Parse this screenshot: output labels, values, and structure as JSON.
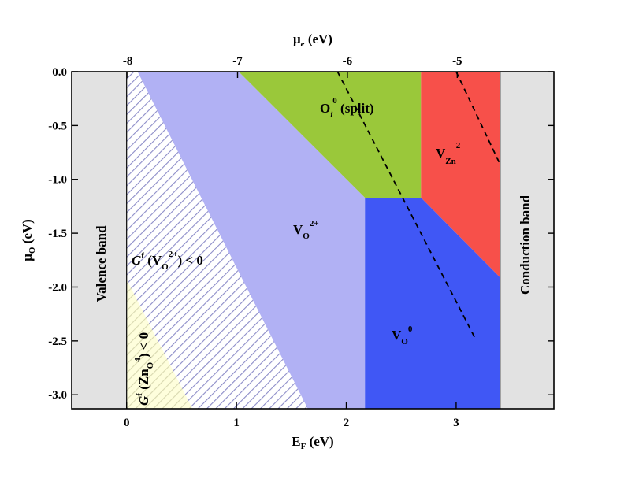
{
  "chart_data": {
    "type": "area",
    "xaxis": {
      "label_main": "E",
      "label_sub": "F",
      "label_unit": " (eV)",
      "ticks": [
        0,
        1,
        2,
        3
      ],
      "tick_labels": [
        "0",
        "1",
        "2",
        "3"
      ],
      "xlim": [
        -0.5,
        3.89
      ]
    },
    "top_axis": {
      "label_main": "μ",
      "label_sub": "e",
      "label_unit": " (eV)",
      "ticks": [
        0.01,
        1.01,
        2.01,
        3.01
      ],
      "tick_labels": [
        "-8",
        "-7",
        "-6",
        "-5"
      ]
    },
    "yaxis": {
      "label_main": "μ",
      "label_sub": "O",
      "label_unit": " (eV)",
      "ticks": [
        0.0,
        -0.5,
        -1.0,
        -1.5,
        -2.0,
        -2.5,
        -3.0
      ],
      "tick_labels": [
        "0.0",
        "-0.5",
        "-1.0",
        "-1.5",
        "-2.0",
        "-2.5",
        "-3.0"
      ],
      "ylim": [
        -3.13,
        0.0
      ]
    },
    "bands": {
      "valence": {
        "label": "Valence band",
        "x_range": [
          -0.5,
          0.0
        ],
        "color": "#e2e2e2"
      },
      "conduction": {
        "label": "Conduction band",
        "x_range": [
          3.4,
          3.89
        ],
        "color": "#e2e2e2"
      }
    },
    "regions": [
      {
        "id": "vo2plus",
        "color": "#b1b1f4",
        "label_main": "V",
        "label_sub": "O",
        "label_sup": "2+",
        "polygon": [
          [
            0.0,
            0.0
          ],
          [
            1.02,
            0.0
          ],
          [
            2.17,
            -1.17
          ],
          [
            2.17,
            -3.13
          ],
          [
            0.0,
            -3.13
          ]
        ]
      },
      {
        "id": "oi0",
        "color": "#9ac83a",
        "label_main": "O",
        "label_sub": "i",
        "label_sup": "0",
        "label_suffix": " (split)",
        "polygon": [
          [
            1.02,
            0.0
          ],
          [
            2.68,
            0.0
          ],
          [
            2.68,
            -1.17
          ],
          [
            2.17,
            -1.17
          ]
        ]
      },
      {
        "id": "vzn2minus",
        "color": "#f7504a",
        "label_main": "V",
        "label_sub": "Zn",
        "label_sup": "2-",
        "polygon": [
          [
            2.68,
            0.0
          ],
          [
            3.4,
            0.0
          ],
          [
            3.4,
            -1.91
          ],
          [
            2.68,
            -1.17
          ]
        ]
      },
      {
        "id": "vo0",
        "color": "#4057f5",
        "label_main": "V",
        "label_sub": "O",
        "label_sup": "0",
        "polygon": [
          [
            2.17,
            -1.17
          ],
          [
            2.68,
            -1.17
          ],
          [
            3.4,
            -1.91
          ],
          [
            3.4,
            -3.13
          ],
          [
            2.17,
            -3.13
          ]
        ]
      }
    ],
    "hatched_regions": [
      {
        "id": "gf_vo2plus_negative",
        "hatch_color": "#8c8cc8",
        "background": "#ffffff",
        "polygon": [
          [
            0.0,
            0.0
          ],
          [
            0.1,
            0.0
          ],
          [
            1.65,
            -3.13
          ],
          [
            0.0,
            -3.13
          ]
        ],
        "label_main": "G",
        "label_sup": "f",
        "label_open": " (V",
        "label_sub": "O",
        "label_sup2": "2+",
        "label_close": ") < 0"
      },
      {
        "id": "gf_zno4_negative",
        "hatch_color": "#d8d8b0",
        "background": "#fefedc",
        "polygon": [
          [
            0.0,
            -1.93
          ],
          [
            0.6,
            -3.13
          ],
          [
            0.0,
            -3.13
          ]
        ],
        "label_main": "G",
        "label_sup": "f",
        "label_open": " (Zn",
        "label_sub": "O",
        "label_sup2": "4",
        "label_close": ") < 0"
      }
    ],
    "dashed_lines": [
      {
        "id": "line-1",
        "points": [
          [
            1.92,
            0.0
          ],
          [
            3.17,
            -2.47
          ]
        ]
      },
      {
        "id": "line-2",
        "points": [
          [
            3.0,
            0.0
          ],
          [
            3.4,
            -0.86
          ]
        ]
      }
    ]
  }
}
